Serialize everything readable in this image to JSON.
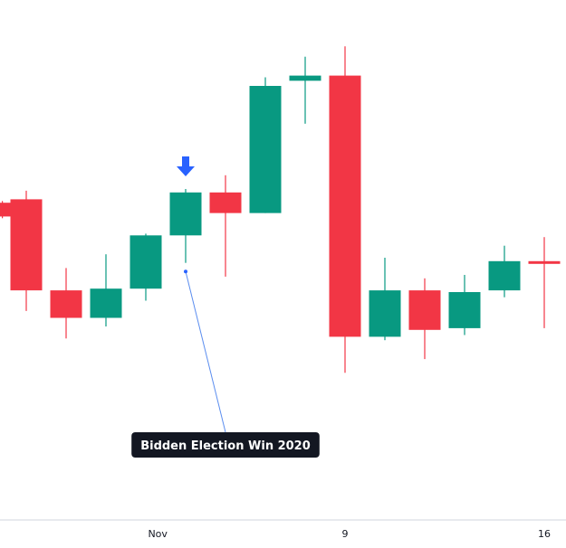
{
  "chart_data": {
    "type": "candlestick",
    "colors": {
      "up": "#089981",
      "down": "#f23645",
      "marker": "#2962ff",
      "annotation_bg": "#131722",
      "annotation_line": "#5b8def"
    },
    "ylim": [
      0,
      100
    ],
    "candles": [
      {
        "slot": -0.6,
        "open": 66.0,
        "close": 62.0,
        "high": 66.5,
        "low": 61.5
      },
      {
        "slot": 0,
        "open": 67.0,
        "close": 40.5,
        "high": 69.5,
        "low": 34.5
      },
      {
        "slot": 1,
        "open": 40.5,
        "close": 32.5,
        "high": 47.0,
        "low": 26.5
      },
      {
        "slot": 2,
        "open": 32.5,
        "close": 41.0,
        "high": 51.0,
        "low": 30.0
      },
      {
        "slot": 3,
        "open": 41.0,
        "close": 56.5,
        "high": 57.0,
        "low": 37.5
      },
      {
        "slot": 4,
        "open": 56.5,
        "close": 69.0,
        "high": 70.0,
        "low": 48.5
      },
      {
        "slot": 5,
        "open": 69.0,
        "close": 63.0,
        "high": 74.0,
        "low": 44.5
      },
      {
        "slot": 6,
        "open": 63.0,
        "close": 100.0,
        "high": 102.5,
        "low": 63.0
      },
      {
        "slot": 7,
        "open": 101.5,
        "close": 103.0,
        "high": 108.5,
        "low": 89.0
      },
      {
        "slot": 8,
        "open": 103.0,
        "close": 27.0,
        "high": 111.5,
        "low": 16.5
      },
      {
        "slot": 9,
        "open": 27.0,
        "close": 40.5,
        "high": 50.0,
        "low": 26.0
      },
      {
        "slot": 10,
        "open": 40.5,
        "close": 29.0,
        "high": 44.0,
        "low": 20.5
      },
      {
        "slot": 11,
        "open": 29.5,
        "close": 40.0,
        "high": 45.0,
        "low": 27.5
      },
      {
        "slot": 12,
        "open": 40.5,
        "close": 49.0,
        "high": 53.5,
        "low": 38.5
      },
      {
        "slot": 13,
        "open": 49.0,
        "close": 48.5,
        "high": 56.0,
        "low": 29.5
      }
    ],
    "x_ticks": [
      {
        "label": "Nov",
        "slot": 3.3
      },
      {
        "label": "9",
        "slot": 8
      },
      {
        "label": "16",
        "slot": 13
      }
    ],
    "marker": {
      "slot": 4,
      "shape": "down-arrow"
    },
    "annotation": {
      "text": "Bidden Election Win 2020",
      "anchor_slot": 4,
      "anchor_value": 46.0
    }
  }
}
